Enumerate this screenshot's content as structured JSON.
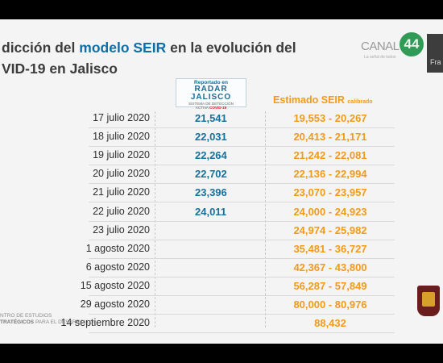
{
  "title": {
    "line1_pre": "dicción del ",
    "line1_hl": "modelo SEIR",
    "line1_post": " en la evolución del",
    "line2": "VID-19 en Jalisco"
  },
  "logo": {
    "canal": "CANAL",
    "number": "44",
    "tagline": "La señal de todos"
  },
  "side_label": "Fra",
  "radar": {
    "line1": "Reportado en",
    "line2": "RADAR JALISCO",
    "line3": "SISTEMA DE DETECCIÓN",
    "line4_pre": "ACTIVA ",
    "line4_hl": "COVID-19"
  },
  "estimated_header": {
    "main": "Estimado SEIR",
    "sub": "calibrado"
  },
  "rows": [
    {
      "date": "17  julio 2020",
      "reported": "21,541",
      "estimated": "19,553 - 20,267"
    },
    {
      "date": "18  julio 2020",
      "reported": "22,031",
      "estimated": "20,413 - 21,171"
    },
    {
      "date": "19  julio 2020",
      "reported": "22,264",
      "estimated": "21,242 - 22,081"
    },
    {
      "date": "20  julio 2020",
      "reported": "22,702",
      "estimated": "22,136 - 22,994"
    },
    {
      "date": "21  julio 2020",
      "reported": "23,396",
      "estimated": "23,070 - 23,957"
    },
    {
      "date": "22  julio 2020",
      "reported": "24,011",
      "estimated": "24,000 - 24,923"
    },
    {
      "date": "23  julio 2020",
      "reported": "",
      "estimated": "24,974 - 25,982"
    },
    {
      "date": "1 agosto 2020",
      "reported": "",
      "estimated": "35,481 - 36,727"
    },
    {
      "date": "6 agosto 2020",
      "reported": "",
      "estimated": "42,367 - 43,800"
    },
    {
      "date": "15 agosto 2020",
      "reported": "",
      "estimated": "56,287 - 57,849"
    },
    {
      "date": "29 agosto 2020",
      "reported": "",
      "estimated": "80,000 - 80,976"
    },
    {
      "date": "14 septiembre 2020",
      "reported": "",
      "estimated": "88,432"
    }
  ],
  "footer": {
    "line1": "NTRO DE ESTUDIOS",
    "line2_bold": "TRATÉGICOS",
    "line2_rest": " PARA EL DESARROLLO"
  },
  "colors": {
    "reported": "#14729c",
    "estimated": "#f39a18",
    "title_highlight": "#0f6ea6"
  }
}
